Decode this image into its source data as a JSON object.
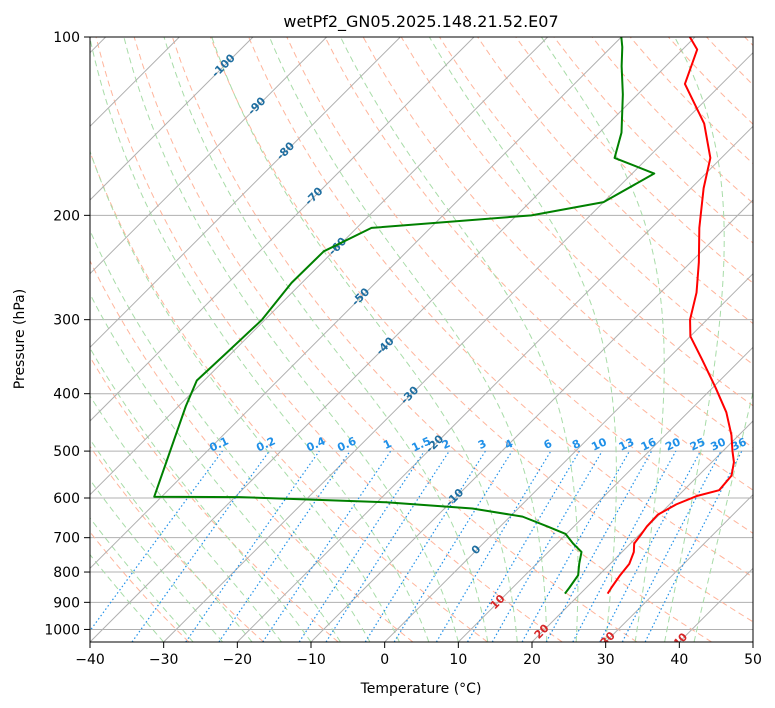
{
  "chart_data": {
    "type": "line",
    "subtype": "skew-t log-p diagram",
    "title": "wetPf2_GN05.2025.148.21.52.E07",
    "xlabel": "Temperature (°C)",
    "ylabel": "Pressure (hPa)",
    "xlim": [
      -40,
      50
    ],
    "ylim_pressure": [
      1050,
      100
    ],
    "x_ticks": [
      -40,
      -30,
      -20,
      -10,
      0,
      10,
      20,
      30,
      40,
      50
    ],
    "x_tick_labels": [
      "−40",
      "−30",
      "−20",
      "−10",
      "0",
      "10",
      "20",
      "30",
      "40",
      "50"
    ],
    "y_ticks": [
      100,
      200,
      300,
      400,
      500,
      600,
      700,
      800,
      900,
      1000
    ],
    "y_tick_labels": [
      "100",
      "200",
      "300",
      "400",
      "500",
      "600",
      "700",
      "800",
      "900",
      "1000"
    ],
    "grid": true,
    "colors": {
      "temperature": "#ff0000",
      "dewpoint": "#008000",
      "isotherm_grid": "#b0b0b0",
      "dry_adiabat": "#ffb59c",
      "moist_adiabat": "#a8dca8",
      "mixing_ratio": "#1f90e8",
      "isotherm_label": "#1f6ea0",
      "cold_label": "#1f77b4",
      "warm_label": "#d62728"
    },
    "series": [
      {
        "role": "temperature",
        "points": [
          [
            23.7,
            870
          ],
          [
            23.4,
            850
          ],
          [
            22.9,
            810
          ],
          [
            22.6,
            775
          ],
          [
            21.6,
            740
          ],
          [
            20.5,
            716
          ],
          [
            20.2,
            690
          ],
          [
            19.9,
            670
          ],
          [
            19.8,
            640
          ],
          [
            20.9,
            615
          ],
          [
            22.6,
            595
          ],
          [
            24.8,
            582
          ],
          [
            24.5,
            550
          ],
          [
            23.0,
            522
          ],
          [
            21.3,
            500
          ],
          [
            19.0,
            470
          ],
          [
            15.2,
            430
          ],
          [
            10.3,
            390
          ],
          [
            4.7,
            350
          ],
          [
            0.0,
            320
          ],
          [
            -2.3,
            300
          ],
          [
            -5.1,
            270
          ],
          [
            -8.9,
            240
          ],
          [
            -13.5,
            210
          ],
          [
            -18.3,
            180
          ],
          [
            -21.5,
            160
          ],
          [
            -27.0,
            140
          ],
          [
            -35.0,
            120
          ],
          [
            -38.0,
            105
          ],
          [
            -40.7,
            100
          ]
        ]
      },
      {
        "role": "dewpoint",
        "points": [
          [
            17.9,
            870
          ],
          [
            17.7,
            850
          ],
          [
            17.2,
            810
          ],
          [
            15.8,
            775
          ],
          [
            14.5,
            740
          ],
          [
            12.2,
            716
          ],
          [
            9.9,
            690
          ],
          [
            6.4,
            670
          ],
          [
            1.7,
            645
          ],
          [
            -6.2,
            625
          ],
          [
            -18.8,
            610
          ],
          [
            -33.8,
            601
          ],
          [
            -39.4,
            598
          ],
          [
            -51.0,
            597
          ],
          [
            -59.0,
            420
          ],
          [
            -61.0,
            380
          ],
          [
            -60.7,
            340
          ],
          [
            -60.4,
            300
          ],
          [
            -61.4,
            260
          ],
          [
            -61.3,
            230
          ],
          [
            -58.0,
            210
          ],
          [
            -38.0,
            200
          ],
          [
            -30.0,
            190
          ],
          [
            -27.0,
            170
          ],
          [
            -34.5,
            160
          ],
          [
            -37.0,
            145
          ],
          [
            -42.0,
            125
          ],
          [
            -46.0,
            112
          ],
          [
            -48.5,
            104
          ],
          [
            -50.0,
            100
          ]
        ]
      }
    ],
    "annotations": {
      "isotherm_labels": [
        {
          "text": "-100",
          "value": -100
        },
        {
          "text": "-90",
          "value": -90
        },
        {
          "text": "-80",
          "value": -80
        },
        {
          "text": "-70",
          "value": -70
        },
        {
          "text": "-60",
          "value": -60
        },
        {
          "text": "-50",
          "value": -50
        },
        {
          "text": "-40",
          "value": -40
        },
        {
          "text": "-30",
          "value": -30
        },
        {
          "text": "-20",
          "value": -20
        },
        {
          "text": "-10",
          "value": -10
        },
        {
          "text": "0",
          "value": 0
        },
        {
          "text": "10",
          "value": 10
        },
        {
          "text": "20",
          "value": 20
        },
        {
          "text": "30",
          "value": 30
        },
        {
          "text": "40",
          "value": 40
        }
      ],
      "mixing_ratio_labels": [
        "0.1",
        "0.2",
        "0.4",
        "0.6",
        "1",
        "1.5",
        "2",
        "3",
        "4",
        "6",
        "8",
        "10",
        "13",
        "16",
        "20",
        "25",
        "30",
        "36"
      ]
    }
  }
}
